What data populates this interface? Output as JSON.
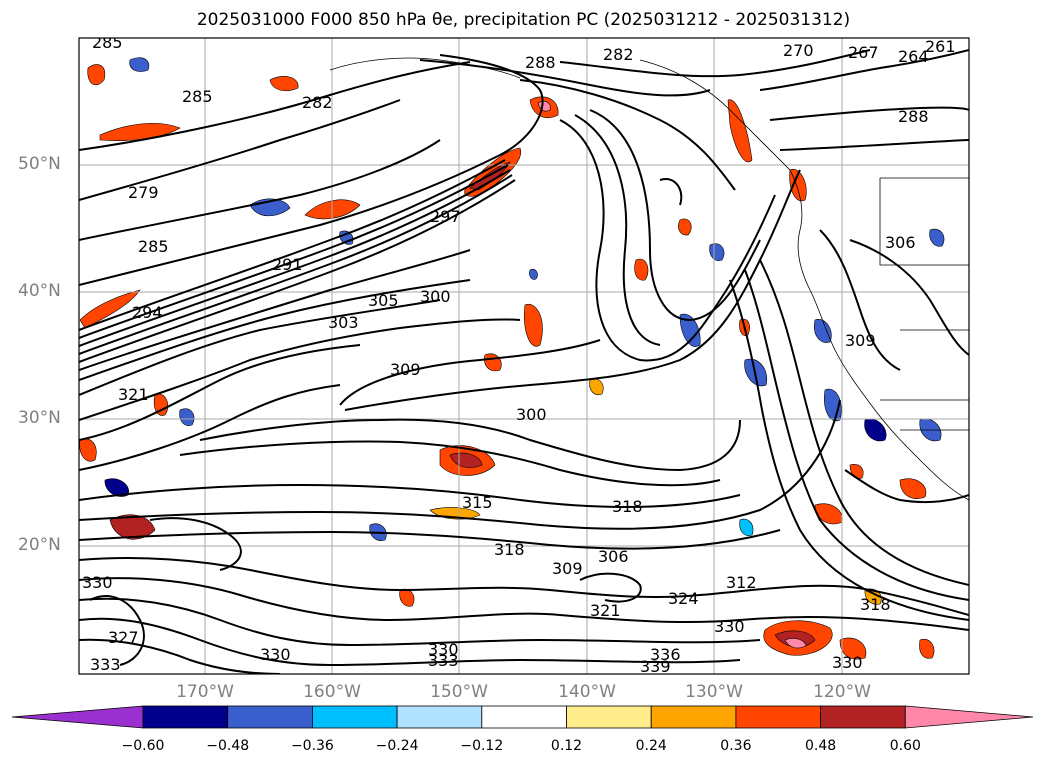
{
  "title": "2025031000 F000 850 hPa θe, precipitation PC (2025031212 - 2025031312)",
  "latitude_labels": [
    "50°N",
    "40°N",
    "30°N",
    "20°N"
  ],
  "longitude_labels": [
    "170°W",
    "160°W",
    "150°W",
    "140°W",
    "130°W",
    "120°W"
  ],
  "colorbar": {
    "ticks": [
      "−0.60",
      "−0.48",
      "−0.36",
      "−0.24",
      "−0.12",
      "0.12",
      "0.24",
      "0.36",
      "0.48",
      "0.60"
    ],
    "colors": [
      "#9b30d0",
      "#00008b",
      "#3a5fcd",
      "#00bfff",
      "#b0e2ff",
      "#ffffff",
      "#ffec8b",
      "#ffa500",
      "#ff4500",
      "#b22222",
      "#ff88aa"
    ]
  },
  "contour_labels": [
    "285",
    "288",
    "282",
    "270",
    "267",
    "264",
    "261",
    "288",
    "285",
    "282",
    "279",
    "285",
    "291",
    "297",
    "294",
    "303",
    "300",
    "305",
    "309",
    "321",
    "300",
    "315",
    "318",
    "318",
    "306",
    "309",
    "312",
    "324",
    "321",
    "318",
    "330",
    "330",
    "333",
    "336",
    "339",
    "330",
    "327",
    "330",
    "333",
    "306",
    "309",
    "330"
  ]
}
